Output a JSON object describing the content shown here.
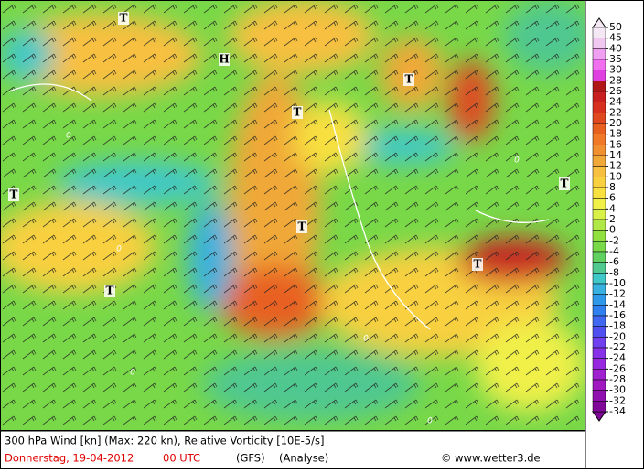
{
  "map": {
    "labels": [
      "T",
      "H",
      "T",
      "T",
      "T",
      "T",
      "T",
      "T",
      "T"
    ],
    "contours": [
      "0",
      "0",
      "0",
      "0",
      "0",
      "0"
    ]
  },
  "legend": {
    "ticks": [
      "50",
      "45",
      "40",
      "35",
      "30",
      "28",
      "26",
      "24",
      "22",
      "20",
      "18",
      "16",
      "14",
      "12",
      "10",
      "8",
      "6",
      "4",
      "2",
      "0",
      "-2",
      "-4",
      "-6",
      "-8",
      "-10",
      "-12",
      "-14",
      "-16",
      "-18",
      "-20",
      "-22",
      "-24",
      "-26",
      "-28",
      "-30",
      "-32",
      "-34"
    ],
    "colors": [
      "#f4e8f4",
      "#f0c8f0",
      "#f0a0f0",
      "#f070f0",
      "#e040e0",
      "#b01818",
      "#c82020",
      "#d83020",
      "#e04820",
      "#e86020",
      "#f07828",
      "#f09030",
      "#f0a838",
      "#f8c040",
      "#f8d040",
      "#f8e040",
      "#f0f048",
      "#d8f048",
      "#b0e848",
      "#90e040",
      "#78d848",
      "#60d060",
      "#50c890",
      "#40c8c8",
      "#38b0e0",
      "#3098e8",
      "#3080f0",
      "#4068f0",
      "#5050f0",
      "#7040f0",
      "#8830e8",
      "#9828e0",
      "#a020d0",
      "#a018c0",
      "#9010b0",
      "#800898"
    ]
  },
  "caption": {
    "line1": "300 hPa Wind [kn] (Max: 220 kn), Relative Vorticity [10E-5/s]",
    "date": "Donnerstag, 19-04-2012",
    "time": "00 UTC",
    "model": "(GFS)",
    "run": "(Analyse)",
    "credit": "© www.wetter3.de"
  }
}
